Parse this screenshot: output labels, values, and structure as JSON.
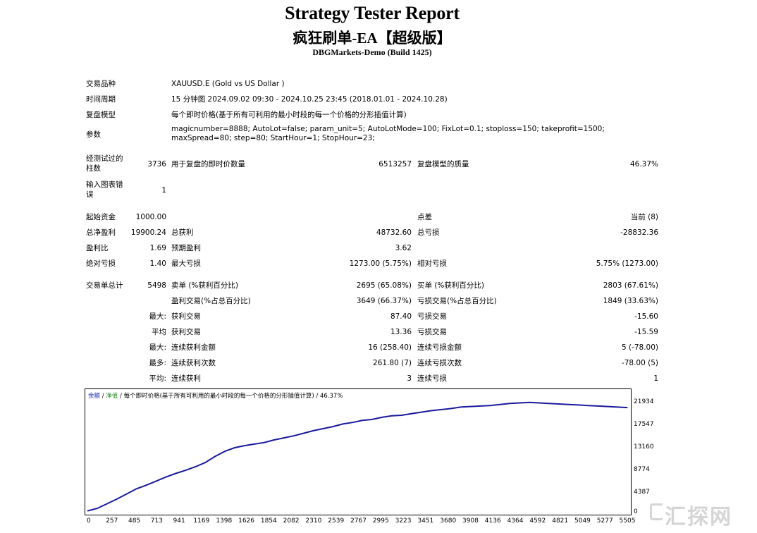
{
  "header": {
    "title": "Strategy Tester Report",
    "ea_name": "疯狂刷单-EA【超级版】",
    "server_build": "DBGMarkets-Demo (Build 1425)"
  },
  "settings": {
    "symbol_label": "交易品种",
    "symbol_value": "XAUUSD.E (Gold vs US Dollar )",
    "period_label": "时间周期",
    "period_value": "15 分钟图 2024.09.02 09:30 - 2024.10.25 23:45 (2018.01.01 - 2024.10.28)",
    "model_label": "复盘模型",
    "model_value": "每个即时价格(基于所有可利用的最小时段的每一个价格的分形插值计算)",
    "params_label": "参数",
    "params_value": "magicnumber=8888; AutoLot=false; param_unit=5; AutoLotMode=100; FixLot=0.1; stoploss=150; takeprofit=1500; maxSpread=80; step=80; StartHour=1; StopHour=23;"
  },
  "stats": {
    "bars_label": "经测试过的柱数",
    "bars_value": "3736",
    "ticks_label": "用于复盘的即时价数量",
    "ticks_value": "6513257",
    "quality_label": "复盘模型的质量",
    "quality_value": "46.37%",
    "mismatch_label": "输入图表错误",
    "mismatch_value": "1",
    "deposit_label": "起始资金",
    "deposit_value": "1000.00",
    "spread_label": "点差",
    "spread_value": "当前 (8)",
    "net_label": "总净盈利",
    "net_value": "19900.24",
    "gross_profit_label": "总获利",
    "gross_profit_value": "48732.60",
    "gross_loss_label": "总亏损",
    "gross_loss_value": "-28832.36",
    "pf_label": "盈利比",
    "pf_value": "1.69",
    "payoff_label": "预期盈利",
    "payoff_value": "3.62",
    "abs_dd_label": "绝对亏损",
    "abs_dd_value": "1.40",
    "max_dd_label": "最大亏损",
    "max_dd_value": "1273.00 (5.75%)",
    "rel_dd_label": "相对亏损",
    "rel_dd_value": "5.75% (1273.00)",
    "total_trades_label": "交易单总计",
    "total_trades_value": "5498",
    "short_label": "卖单 (%获利百分比)",
    "short_value": "2695 (65.08%)",
    "long_label": "买单 (%获利百分比)",
    "long_value": "2803 (67.61%)",
    "profit_trades_label": "盈利交易(%占总百分比)",
    "profit_trades_value": "3649 (66.37%)",
    "loss_trades_label": "亏损交易(%占总百分比)",
    "loss_trades_value": "1849 (33.63%)",
    "largest_label": "最大:",
    "largest_profit_label": "获利交易",
    "largest_profit_value": "87.40",
    "largest_loss_label": "亏损交易",
    "largest_loss_value": "-15.60",
    "average_label": "平均",
    "average_profit_label": "获利交易",
    "average_profit_value": "13.36",
    "average_loss_label": "亏损交易",
    "average_loss_value": "-15.59",
    "max_label": "最大:",
    "max_consec_wins_label": "连续获利金额",
    "max_consec_wins_value": "16 (258.40)",
    "max_consec_losses_label": "连续亏损金额",
    "max_consec_losses_value": "5 (-78.00)",
    "maximal_label": "最多:",
    "maximal_consec_profit_label": "连续获利次数",
    "maximal_consec_profit_value": "261.80 (7)",
    "maximal_consec_loss_label": "连续亏损次数",
    "maximal_consec_loss_value": "-78.00 (5)",
    "avg_label": "平均:",
    "avg_consec_wins_label": "连续获利",
    "avg_consec_wins_value": "3",
    "avg_consec_losses_label": "连续亏损",
    "avg_consec_losses_value": "1"
  },
  "chart_legend": {
    "balance": "余额",
    "sep": " / ",
    "equity": "净值",
    "rest": " / 每个即时价格(基于所有可利用的最小时段的每一个价格的分形插值计算) / 46.37%"
  },
  "watermark": "汇探网",
  "chart_data": {
    "type": "line",
    "title": "",
    "xlabel": "",
    "ylabel": "",
    "x_ticks": [
      0,
      257,
      485,
      713,
      941,
      1169,
      1398,
      1626,
      1854,
      2082,
      2310,
      2539,
      2767,
      2995,
      3223,
      3451,
      3680,
      3908,
      4136,
      4364,
      4592,
      4821,
      5049,
      5277,
      5505
    ],
    "y_ticks": [
      0,
      4387,
      8774,
      13160,
      17547,
      21934
    ],
    "xlim": [
      0,
      5500
    ],
    "ylim": [
      0,
      23000
    ],
    "colors": {
      "balance": "#1a1a9c"
    },
    "series": [
      {
        "name": "余额",
        "x": [
          0,
          100,
          200,
          300,
          400,
          500,
          600,
          700,
          800,
          900,
          1000,
          1100,
          1200,
          1300,
          1400,
          1500,
          1600,
          1700,
          1800,
          1900,
          2000,
          2100,
          2200,
          2300,
          2400,
          2500,
          2600,
          2700,
          2800,
          2900,
          3000,
          3100,
          3200,
          3300,
          3400,
          3500,
          3600,
          3700,
          3800,
          3900,
          4000,
          4100,
          4200,
          4300,
          4400,
          4500,
          4600,
          4700,
          4800,
          4900,
          5000,
          5100,
          5200,
          5300,
          5400,
          5500
        ],
        "values": [
          1000,
          1500,
          2400,
          3300,
          4300,
          5300,
          6000,
          6800,
          7600,
          8300,
          8900,
          9600,
          10400,
          11600,
          12600,
          13300,
          13700,
          14000,
          14300,
          14800,
          15200,
          15600,
          16100,
          16600,
          17000,
          17400,
          17900,
          18200,
          18600,
          18800,
          19200,
          19500,
          19600,
          19900,
          20200,
          20500,
          20700,
          20900,
          21200,
          21300,
          21400,
          21500,
          21700,
          21900,
          22000,
          22100,
          22000,
          21900,
          21800,
          21700,
          21600,
          21500,
          21400,
          21300,
          21200,
          21100
        ]
      }
    ]
  }
}
